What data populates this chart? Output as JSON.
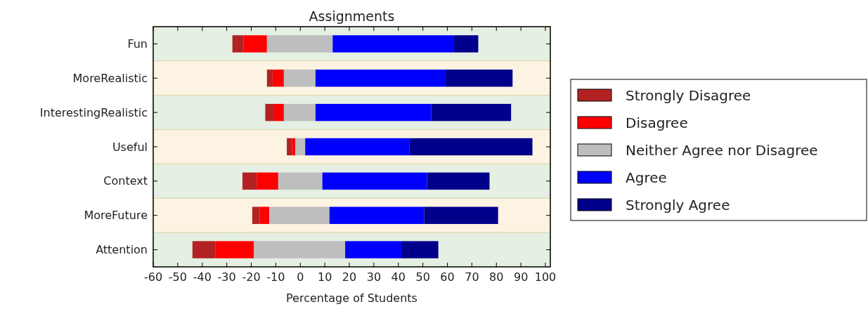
{
  "chart_data": {
    "type": "bar",
    "title": "Assignments",
    "xlabel": "Percentage of Students",
    "orientation": "horizontal",
    "legend": "right",
    "categories": [
      "Fun",
      "MoreRealistic",
      "InterestingRealistic",
      "Useful",
      "Context",
      "MoreFuture",
      "Attention"
    ],
    "series": [
      {
        "name": "Strongly Disagree",
        "color": "#b22222",
        "base": [
          -27.7,
          -13.6,
          -14.3,
          -5.5,
          -23.6,
          -19.6,
          -44.0
        ],
        "values": [
          4.6,
          2.3,
          3.6,
          2.2,
          5.8,
          3.0,
          9.3
        ]
      },
      {
        "name": "Disagree",
        "color": "#ff0000",
        "base": [
          -23.1,
          -11.3,
          -10.7,
          -3.3,
          -17.8,
          -16.6,
          -34.7
        ],
        "values": [
          9.5,
          4.6,
          4.0,
          1.3,
          8.8,
          4.0,
          15.8
        ]
      },
      {
        "name": "Neither Agree nor Disagree",
        "color": "#bebebe",
        "base": [
          -13.6,
          -6.7,
          -6.7,
          -2.0,
          -9.0,
          -12.6,
          -18.9
        ],
        "values": [
          26.8,
          12.9,
          12.9,
          4.0,
          18.0,
          24.5,
          37.2
        ]
      },
      {
        "name": "Agree",
        "color": "#0000ff",
        "base": [
          13.2,
          6.2,
          6.2,
          2.0,
          9.0,
          11.9,
          18.3
        ],
        "values": [
          49.5,
          53.1,
          47.2,
          42.6,
          42.7,
          38.6,
          22.9
        ]
      },
      {
        "name": "Strongly Agree",
        "color": "#00008b",
        "base": [
          62.7,
          59.3,
          53.4,
          44.6,
          51.7,
          50.5,
          41.2
        ],
        "values": [
          9.9,
          27.3,
          32.6,
          50.1,
          25.5,
          30.2,
          15.1
        ]
      }
    ],
    "xlim": [
      -60,
      102
    ],
    "xticks": [
      -60,
      -50,
      -40,
      -30,
      -20,
      -10,
      0,
      10,
      20,
      30,
      40,
      50,
      60,
      70,
      80,
      90,
      100
    ],
    "bands": [
      {
        "axis": "y",
        "from": "Fun",
        "to": "Fun",
        "color": "#e5efe3"
      },
      {
        "axis": "y",
        "from": "MoreRealistic",
        "to": "MoreRealistic",
        "color": "#fdf3e3"
      },
      {
        "axis": "y",
        "from": "InterestingRealistic",
        "to": "InterestingRealistic",
        "color": "#e5efe3"
      },
      {
        "axis": "y",
        "from": "Useful",
        "to": "Useful",
        "color": "#fdf3e3"
      },
      {
        "axis": "y",
        "from": "Context",
        "to": "Context",
        "color": "#e5efe3"
      },
      {
        "axis": "y",
        "from": "MoreFuture",
        "to": "MoreFuture",
        "color": "#fdf3e3"
      },
      {
        "axis": "y",
        "from": "Attention",
        "to": "Attention",
        "color": "#e5efe3"
      }
    ]
  }
}
